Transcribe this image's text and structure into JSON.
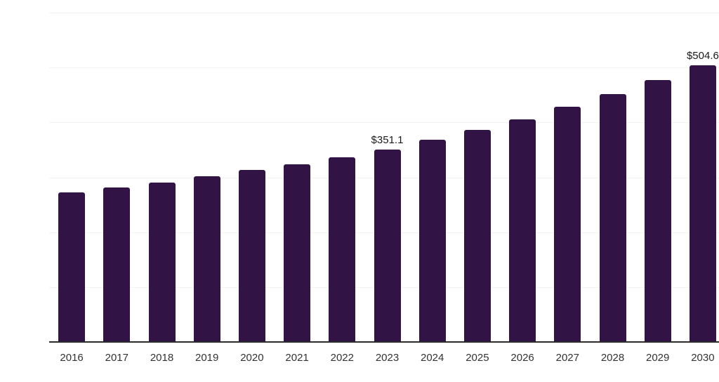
{
  "chart_data": {
    "type": "bar",
    "title": "",
    "xlabel": "",
    "ylabel": "",
    "categories": [
      "2016",
      "2017",
      "2018",
      "2019",
      "2020",
      "2021",
      "2022",
      "2023",
      "2024",
      "2025",
      "2026",
      "2027",
      "2028",
      "2029",
      "2030"
    ],
    "values": [
      272,
      281,
      291,
      302,
      313,
      324,
      337,
      351.1,
      368,
      386,
      406,
      428,
      451,
      477,
      504.6
    ],
    "labeled_points": [
      {
        "category": "2023",
        "label": "$351.1"
      },
      {
        "category": "2030",
        "label": "$504.6"
      }
    ],
    "ylim": [
      0,
      600
    ],
    "gridline_interval": 100,
    "grid_visible": true,
    "legend": "none",
    "y_axis_labels_visible": false,
    "colors": {
      "bar": "#321345",
      "gridline": "#f3f3f3",
      "axis_line": "#2b2b2b",
      "tick_label": "#333333",
      "value_label": "#1a1a1a",
      "background": "#ffffff"
    }
  }
}
